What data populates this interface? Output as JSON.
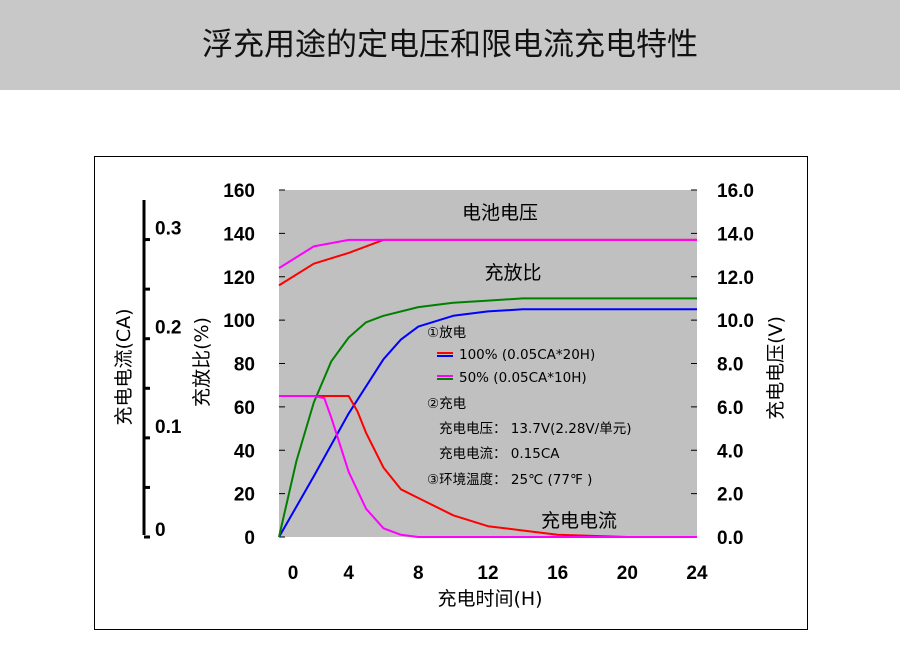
{
  "page": {
    "title": "浮充用途的定电压和限电流充电特性"
  },
  "chart_data": {
    "type": "line",
    "grid": false,
    "plot_background": "#c0c0c0",
    "x": {
      "label": "充电时间(H)",
      "range": [
        0,
        24
      ],
      "ticks": [
        "0",
        "4",
        "8",
        "12",
        "16",
        "20",
        "24"
      ]
    },
    "y_left": {
      "label": "充放比(%)",
      "range": [
        0,
        160
      ],
      "ticks": [
        "0",
        "20",
        "40",
        "60",
        "80",
        "100",
        "120",
        "140",
        "160"
      ]
    },
    "y_right": {
      "label": "充电电压(V)",
      "range": [
        0,
        16
      ],
      "ticks": [
        "0.0",
        "2.0",
        "4.0",
        "6.0",
        "8.0",
        "10.0",
        "12.0",
        "14.0",
        "16.0"
      ]
    },
    "y_far_left": {
      "label": "充电电流(CA)",
      "range": [
        0,
        0.35
      ],
      "ticks": [
        "0",
        "0.1",
        "0.2",
        "0.3"
      ]
    },
    "curve_labels": {
      "voltage": "电池电压",
      "ratio": "充放比",
      "current": "充电电流"
    },
    "legend": {
      "discharge_title": "①放电",
      "series_100": "100% (0.05CA*20H)",
      "series_50": "50% (0.05CA*10H)",
      "charge_title": "②充电",
      "charge_voltage": "充电电压：  13.7V(2.28V/单元)",
      "charge_current": "充电电流：  0.15CA",
      "env_temp": "③环境温度：  25℃ (77℉ )"
    },
    "series": [
      {
        "id": "v100",
        "axis": "right",
        "color": "#ff0000",
        "x": [
          0,
          2,
          4,
          6,
          8,
          12,
          16,
          20,
          24
        ],
        "y": [
          11.6,
          12.6,
          13.1,
          13.7,
          13.7,
          13.7,
          13.7,
          13.7,
          13.7
        ]
      },
      {
        "id": "v50",
        "axis": "right",
        "color": "#ff00ff",
        "x": [
          0,
          2,
          4,
          6,
          8,
          12,
          16,
          20,
          24
        ],
        "y": [
          12.4,
          13.4,
          13.7,
          13.7,
          13.7,
          13.7,
          13.7,
          13.7,
          13.7
        ]
      },
      {
        "id": "r100",
        "axis": "left",
        "color": "#0000ff",
        "x": [
          0,
          2,
          4,
          6,
          7,
          8,
          10,
          12,
          14,
          16,
          20,
          24
        ],
        "y": [
          0,
          28,
          57,
          82,
          91,
          97,
          102,
          104,
          105,
          105,
          105,
          105
        ]
      },
      {
        "id": "r50",
        "axis": "left",
        "color": "#008000",
        "x": [
          0,
          1,
          2,
          3,
          4,
          5,
          6,
          8,
          10,
          12,
          14,
          16,
          20,
          24
        ],
        "y": [
          0,
          35,
          62,
          81,
          92,
          99,
          102,
          106,
          108,
          109,
          110,
          110,
          110,
          110
        ]
      },
      {
        "id": "i100",
        "axis": "left",
        "color": "#ff0000",
        "x": [
          0,
          2,
          4,
          4.5,
          5,
          6,
          7,
          8,
          10,
          12,
          14,
          16,
          20,
          24
        ],
        "y": [
          65,
          65,
          65,
          58,
          48,
          32,
          22,
          18,
          10,
          5,
          3,
          1,
          0,
          0
        ]
      },
      {
        "id": "i50",
        "axis": "left",
        "color": "#ff00ff",
        "x": [
          0,
          2,
          2.6,
          3,
          4,
          5,
          6,
          7,
          8,
          12,
          24
        ],
        "y": [
          65,
          65,
          64,
          55,
          30,
          13,
          4,
          1,
          0,
          0,
          0
        ]
      }
    ]
  }
}
